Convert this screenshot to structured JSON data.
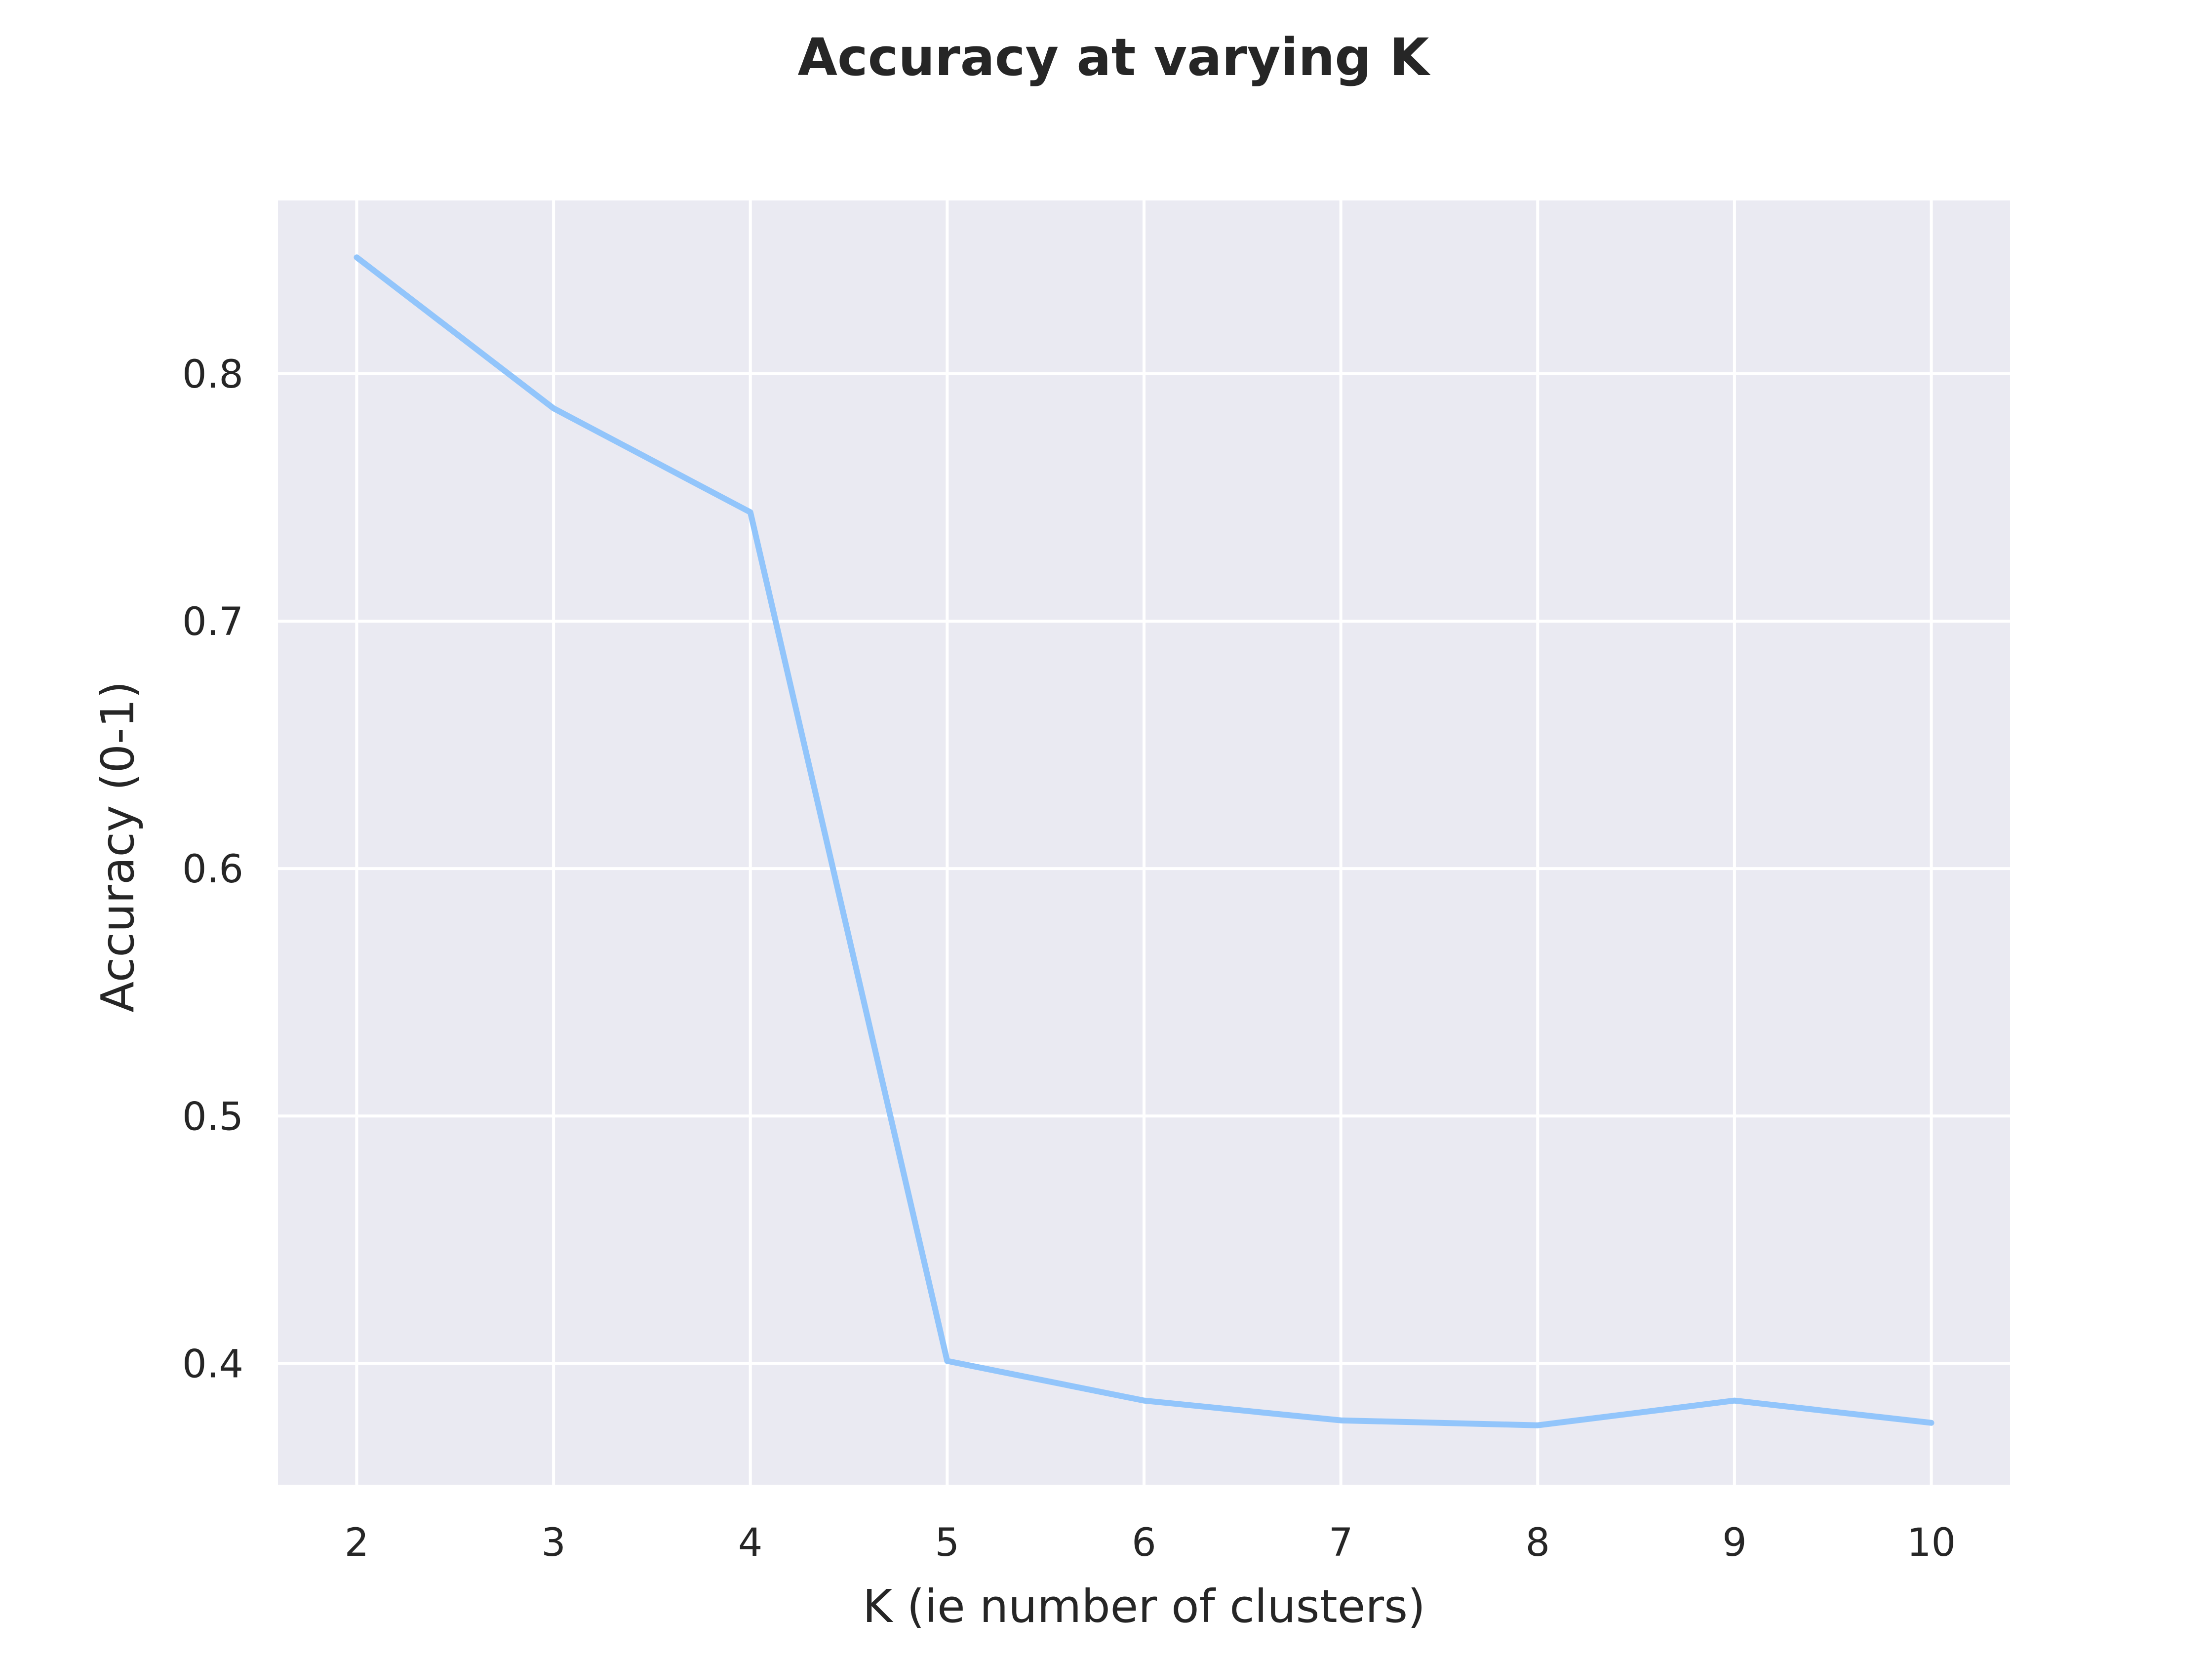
{
  "chart_data": {
    "type": "line",
    "title": "Accuracy at varying K",
    "xlabel": "K (ie number of clusters)",
    "ylabel": "Accuracy (0-1)",
    "x": [
      2,
      3,
      4,
      5,
      6,
      7,
      8,
      9,
      10
    ],
    "series": [
      {
        "values": [
          0.847,
          0.786,
          0.744,
          0.401,
          0.385,
          0.377,
          0.375,
          0.385,
          0.376
        ],
        "color": "#92c5fb"
      }
    ],
    "xticks": [
      "2",
      "3",
      "4",
      "5",
      "6",
      "7",
      "8",
      "9",
      "10"
    ],
    "yticks": [
      "0.4",
      "0.5",
      "0.6",
      "0.7",
      "0.8"
    ],
    "xlim": [
      1.6,
      10.4
    ],
    "ylim": [
      0.351,
      0.87
    ],
    "grid": true,
    "background": "#eaeaf2"
  }
}
